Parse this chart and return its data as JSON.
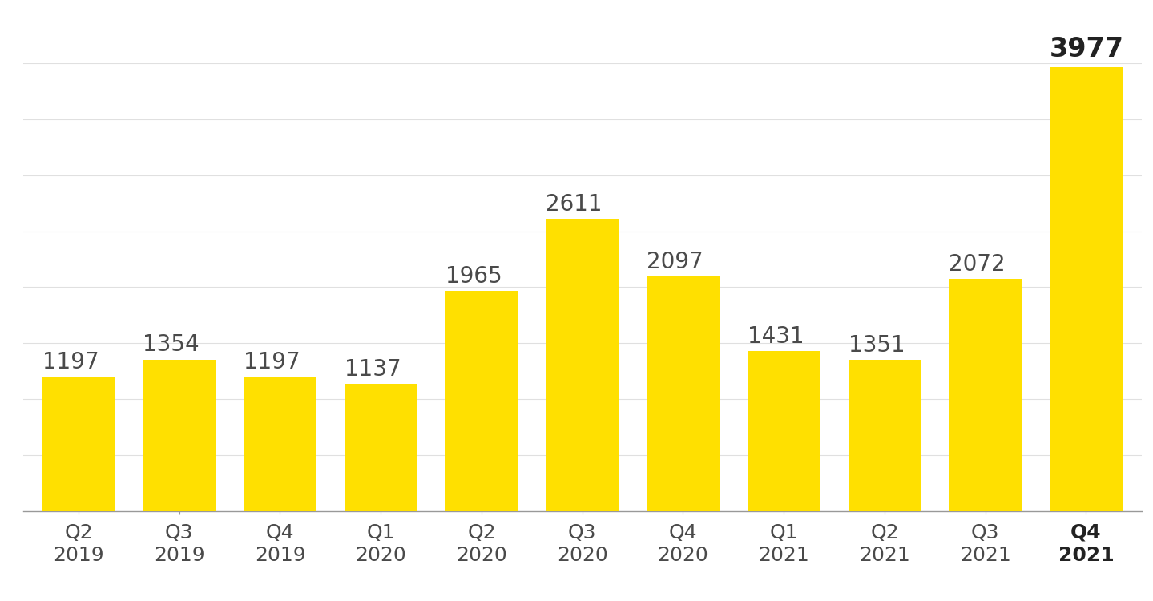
{
  "categories": [
    [
      "Q2",
      "2019"
    ],
    [
      "Q3",
      "2019"
    ],
    [
      "Q4",
      "2019"
    ],
    [
      "Q1",
      "2020"
    ],
    [
      "Q2",
      "2020"
    ],
    [
      "Q3",
      "2020"
    ],
    [
      "Q4",
      "2020"
    ],
    [
      "Q1",
      "2021"
    ],
    [
      "Q2",
      "2021"
    ],
    [
      "Q3",
      "2021"
    ],
    [
      "Q4",
      "2021"
    ]
  ],
  "values": [
    1197,
    1354,
    1197,
    1137,
    1965,
    2611,
    2097,
    1431,
    1351,
    2072,
    3977
  ],
  "bar_color": "#FFE000",
  "label_color": "#4a4a4a",
  "last_bar_label_color": "#222222",
  "background_color": "#ffffff",
  "grid_color": "#e0e0e0",
  "ylim": [
    0,
    4300
  ],
  "bar_width": 0.72,
  "label_fontsize": 20,
  "tick_fontsize": 18,
  "grid_intervals": [
    500,
    1000,
    1500,
    2000,
    2500,
    3000,
    3500,
    4000
  ]
}
